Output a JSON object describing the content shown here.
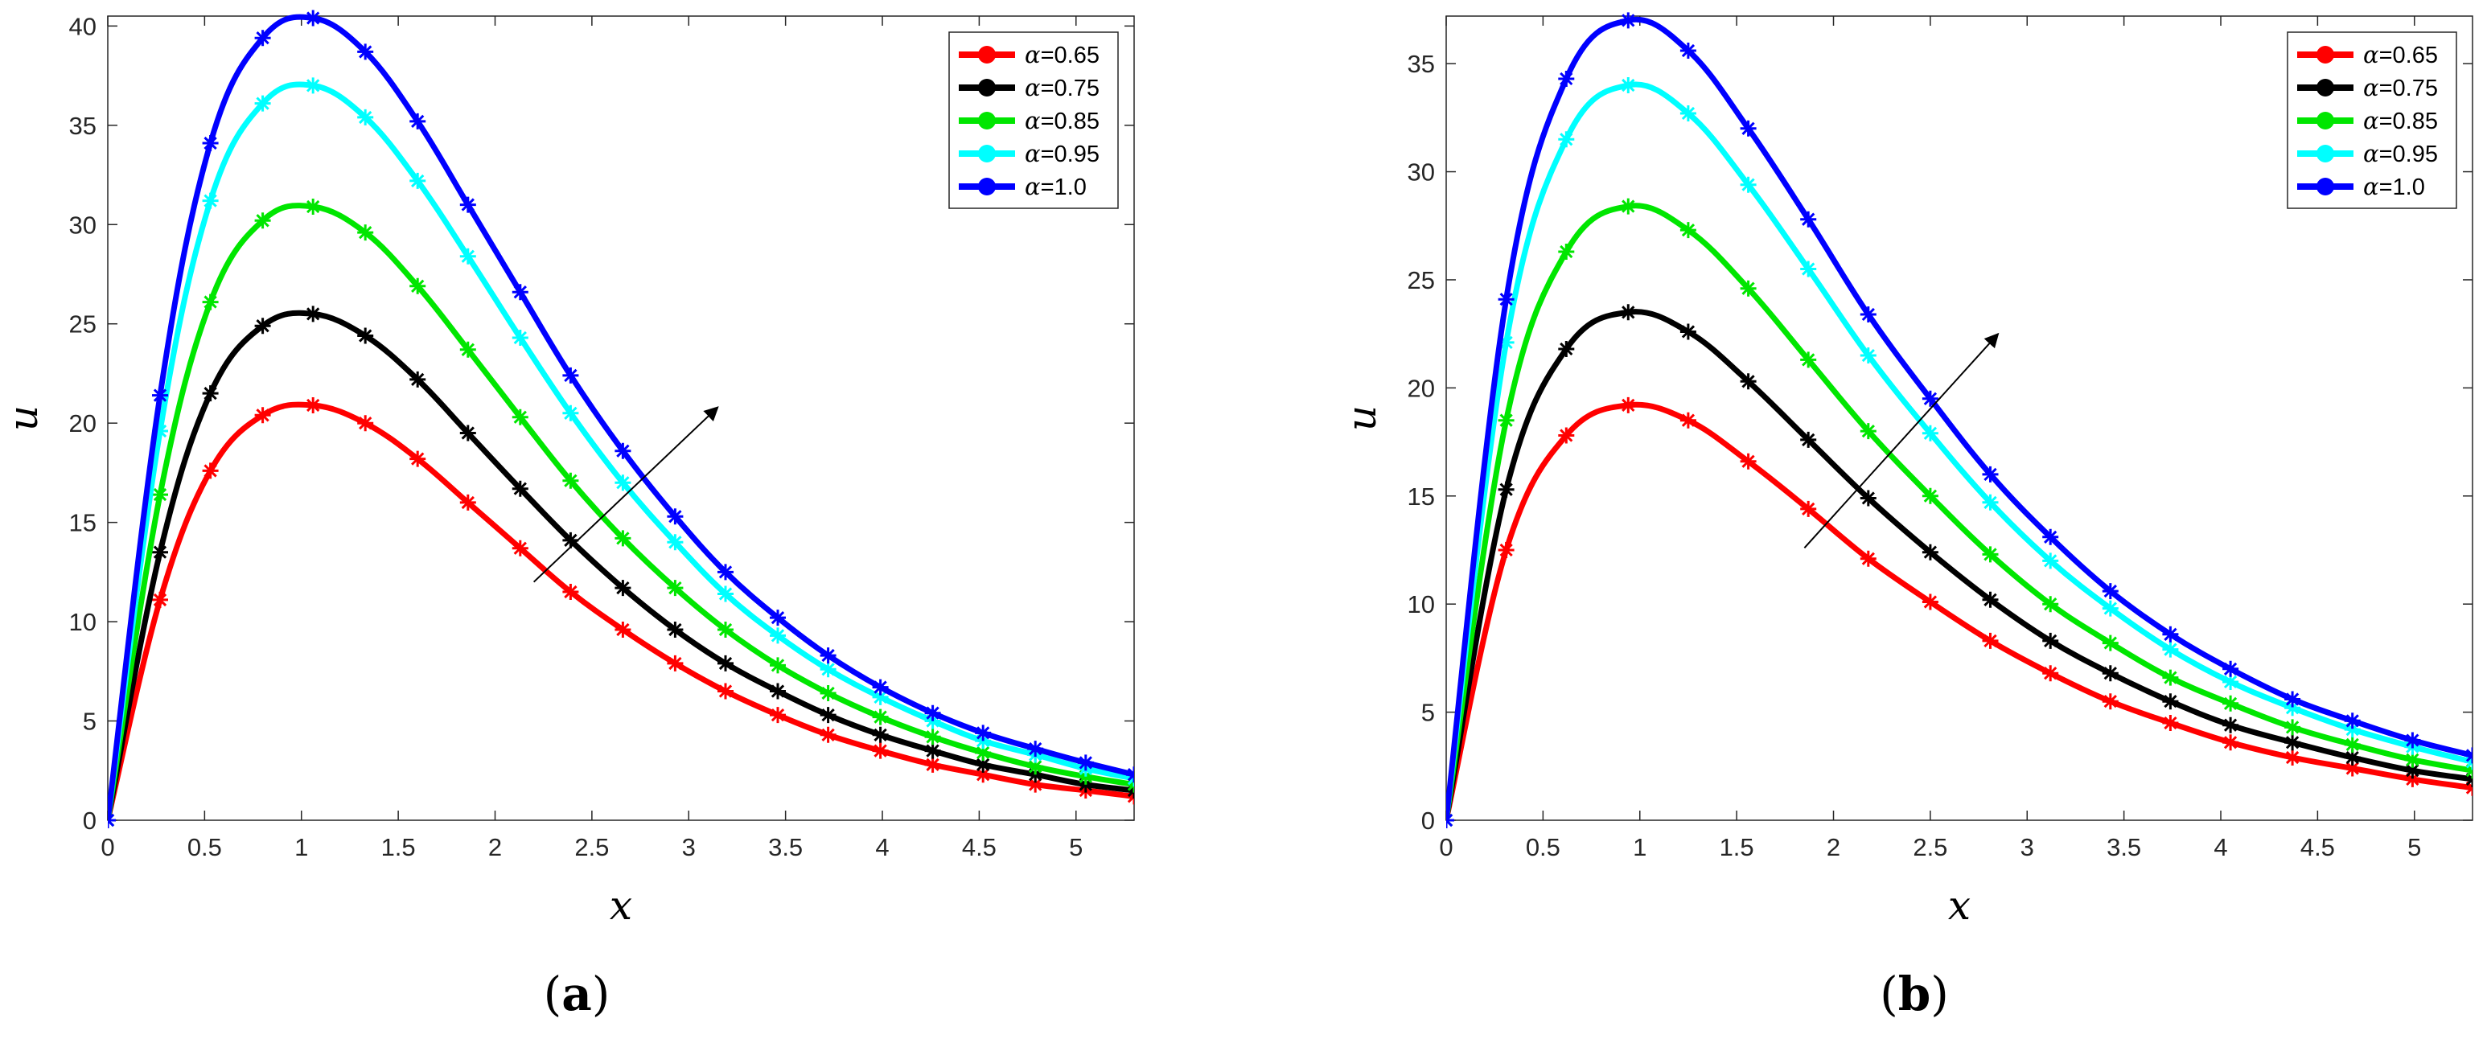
{
  "chart_data": [
    {
      "type": "line",
      "panel_label": "a",
      "xlabel": "x",
      "ylabel": "u",
      "xlim": [
        0,
        5.3
      ],
      "ylim": [
        0,
        40.5
      ],
      "xticks": [
        0,
        0.5,
        1,
        1.5,
        2,
        2.5,
        3,
        3.5,
        4,
        4.5,
        5
      ],
      "yticks": [
        0,
        5,
        10,
        15,
        20,
        25,
        30,
        35,
        40
      ],
      "grid": false,
      "legend_position": "top-right",
      "arrow": {
        "from": [
          2.2,
          12.0
        ],
        "to": [
          3.15,
          20.8
        ]
      },
      "series": [
        {
          "name": "0.65",
          "color": "#ff0000",
          "x": [
            0,
            0.27,
            0.53,
            0.8,
            1.06,
            1.33,
            1.6,
            1.86,
            2.13,
            2.39,
            2.66,
            2.93,
            3.19,
            3.46,
            3.72,
            3.99,
            4.26,
            4.52,
            4.79,
            5.05,
            5.3
          ],
          "y": [
            0,
            11.1,
            17.6,
            20.4,
            20.9,
            20.0,
            18.2,
            16.0,
            13.7,
            11.5,
            9.6,
            7.9,
            6.5,
            5.3,
            4.3,
            3.5,
            2.8,
            2.3,
            1.8,
            1.5,
            1.2
          ]
        },
        {
          "name": "0.75",
          "color": "#000000",
          "x": [
            0,
            0.27,
            0.53,
            0.8,
            1.06,
            1.33,
            1.6,
            1.86,
            2.13,
            2.39,
            2.66,
            2.93,
            3.19,
            3.46,
            3.72,
            3.99,
            4.26,
            4.52,
            4.79,
            5.05,
            5.3
          ],
          "y": [
            0,
            13.5,
            21.5,
            24.9,
            25.5,
            24.4,
            22.2,
            19.5,
            16.7,
            14.1,
            11.7,
            9.6,
            7.9,
            6.5,
            5.3,
            4.3,
            3.5,
            2.8,
            2.3,
            1.8,
            1.5
          ]
        },
        {
          "name": "0.85",
          "color": "#00e600",
          "x": [
            0,
            0.27,
            0.53,
            0.8,
            1.06,
            1.33,
            1.6,
            1.86,
            2.13,
            2.39,
            2.66,
            2.93,
            3.19,
            3.46,
            3.72,
            3.99,
            4.26,
            4.52,
            4.79,
            5.05,
            5.3
          ],
          "y": [
            0,
            16.4,
            26.1,
            30.2,
            30.9,
            29.6,
            26.9,
            23.7,
            20.3,
            17.1,
            14.2,
            11.7,
            9.6,
            7.8,
            6.4,
            5.2,
            4.2,
            3.4,
            2.7,
            2.2,
            1.8
          ]
        },
        {
          "name": "0.95",
          "color": "#00ffff",
          "x": [
            0,
            0.27,
            0.53,
            0.8,
            1.06,
            1.33,
            1.6,
            1.86,
            2.13,
            2.39,
            2.66,
            2.93,
            3.19,
            3.46,
            3.72,
            3.99,
            4.26,
            4.52,
            4.79,
            5.05,
            5.3
          ],
          "y": [
            0,
            19.6,
            31.2,
            36.1,
            37.0,
            35.4,
            32.2,
            28.4,
            24.3,
            20.5,
            17.0,
            14.0,
            11.4,
            9.3,
            7.6,
            6.2,
            5.0,
            4.0,
            3.3,
            2.6,
            2.1
          ]
        },
        {
          "name": "1.0",
          "color": "#0000ff",
          "x": [
            0,
            0.27,
            0.53,
            0.8,
            1.06,
            1.33,
            1.6,
            1.86,
            2.13,
            2.39,
            2.66,
            2.93,
            3.19,
            3.46,
            3.72,
            3.99,
            4.26,
            4.52,
            4.79,
            5.05,
            5.3
          ],
          "y": [
            0,
            21.4,
            34.1,
            39.4,
            40.4,
            38.7,
            35.2,
            31.0,
            26.6,
            22.4,
            18.6,
            15.3,
            12.5,
            10.2,
            8.3,
            6.7,
            5.4,
            4.4,
            3.6,
            2.9,
            2.3
          ]
        }
      ]
    },
    {
      "type": "line",
      "panel_label": "b",
      "xlabel": "x",
      "ylabel": "u",
      "xlim": [
        0,
        5.3
      ],
      "ylim": [
        0,
        37.2
      ],
      "xticks": [
        0,
        0.5,
        1,
        1.5,
        2,
        2.5,
        3,
        3.5,
        4,
        4.5,
        5
      ],
      "yticks": [
        0,
        5,
        10,
        15,
        20,
        25,
        30,
        35
      ],
      "grid": false,
      "legend_position": "top-right",
      "arrow": {
        "from": [
          1.85,
          12.6
        ],
        "to": [
          2.85,
          22.5
        ]
      },
      "series": [
        {
          "name": "0.65",
          "color": "#ff0000",
          "x": [
            0,
            0.31,
            0.62,
            0.94,
            1.25,
            1.56,
            1.87,
            2.18,
            2.5,
            2.81,
            3.12,
            3.43,
            3.74,
            4.05,
            4.37,
            4.68,
            4.99,
            5.3
          ],
          "y": [
            0,
            12.5,
            17.8,
            19.2,
            18.5,
            16.6,
            14.4,
            12.1,
            10.1,
            8.3,
            6.8,
            5.5,
            4.5,
            3.6,
            2.9,
            2.4,
            1.9,
            1.5
          ]
        },
        {
          "name": "0.75",
          "color": "#000000",
          "x": [
            0,
            0.31,
            0.62,
            0.94,
            1.25,
            1.56,
            1.87,
            2.18,
            2.5,
            2.81,
            3.12,
            3.43,
            3.74,
            4.05,
            4.37,
            4.68,
            4.99,
            5.3
          ],
          "y": [
            0,
            15.3,
            21.8,
            23.5,
            22.6,
            20.3,
            17.6,
            14.9,
            12.4,
            10.2,
            8.3,
            6.8,
            5.5,
            4.4,
            3.6,
            2.9,
            2.3,
            1.9
          ]
        },
        {
          "name": "0.85",
          "color": "#00e600",
          "x": [
            0,
            0.31,
            0.62,
            0.94,
            1.25,
            1.56,
            1.87,
            2.18,
            2.5,
            2.81,
            3.12,
            3.43,
            3.74,
            4.05,
            4.37,
            4.68,
            4.99,
            5.3
          ],
          "y": [
            0,
            18.5,
            26.3,
            28.4,
            27.3,
            24.6,
            21.3,
            18.0,
            15.0,
            12.3,
            10.0,
            8.2,
            6.6,
            5.4,
            4.3,
            3.5,
            2.8,
            2.3
          ]
        },
        {
          "name": "0.95",
          "color": "#00ffff",
          "x": [
            0,
            0.31,
            0.62,
            0.94,
            1.25,
            1.56,
            1.87,
            2.18,
            2.5,
            2.81,
            3.12,
            3.43,
            3.74,
            4.05,
            4.37,
            4.68,
            4.99,
            5.3
          ],
          "y": [
            0,
            22.1,
            31.5,
            34.0,
            32.7,
            29.4,
            25.5,
            21.5,
            17.9,
            14.7,
            12.0,
            9.8,
            7.9,
            6.4,
            5.2,
            4.2,
            3.4,
            2.7
          ]
        },
        {
          "name": "1.0",
          "color": "#0000ff",
          "x": [
            0,
            0.31,
            0.62,
            0.94,
            1.25,
            1.56,
            1.87,
            2.18,
            2.5,
            2.81,
            3.12,
            3.43,
            3.74,
            4.05,
            4.37,
            4.68,
            4.99,
            5.3
          ],
          "y": [
            0,
            24.1,
            34.3,
            37.0,
            35.6,
            32.0,
            27.8,
            23.4,
            19.5,
            16.0,
            13.1,
            10.6,
            8.6,
            7.0,
            5.6,
            4.6,
            3.7,
            3.0
          ]
        }
      ]
    }
  ]
}
